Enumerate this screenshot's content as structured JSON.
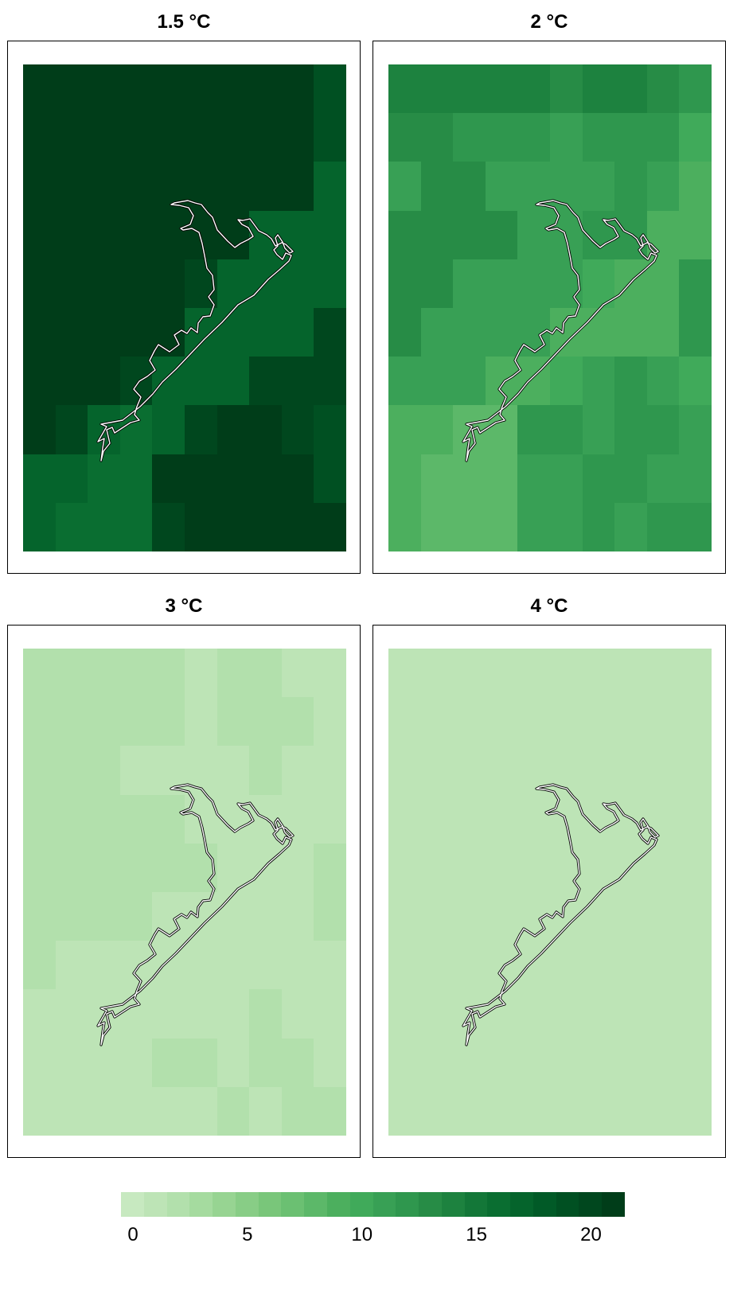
{
  "chart_data": {
    "type": "heatmap",
    "panels": [
      {
        "title": "1.5 °C",
        "grid": [
          [
            21,
            21,
            21,
            21,
            21,
            21,
            21,
            21,
            21,
            19
          ],
          [
            21,
            21,
            21,
            21,
            21,
            21,
            21,
            21,
            21,
            19
          ],
          [
            21,
            21,
            21,
            21,
            21,
            21,
            21,
            21,
            21,
            17
          ],
          [
            21,
            21,
            21,
            21,
            21,
            21,
            21,
            17,
            17,
            17
          ],
          [
            21,
            21,
            21,
            21,
            21,
            20,
            17,
            17,
            17,
            17
          ],
          [
            21,
            21,
            21,
            21,
            21,
            17,
            17,
            17,
            17,
            20
          ],
          [
            21,
            21,
            21,
            20,
            17,
            17,
            17,
            20,
            20,
            20
          ],
          [
            21,
            20,
            17,
            16,
            17,
            20,
            21,
            21,
            20,
            19
          ],
          [
            17,
            17,
            16,
            16,
            21,
            21,
            21,
            21,
            21,
            19
          ],
          [
            17,
            16,
            16,
            16,
            20,
            21,
            21,
            21,
            21,
            21
          ]
        ]
      },
      {
        "title": "2 °C",
        "grid": [
          [
            14,
            14,
            14,
            14,
            14,
            13,
            14,
            14,
            13,
            12
          ],
          [
            13,
            13,
            12,
            12,
            12,
            11,
            12,
            12,
            12,
            10
          ],
          [
            11,
            13,
            13,
            11,
            11,
            11,
            11,
            12,
            11,
            9
          ],
          [
            13,
            13,
            13,
            13,
            11,
            11,
            12,
            12,
            9,
            9
          ],
          [
            13,
            13,
            11,
            11,
            11,
            11,
            10,
            9,
            9,
            12
          ],
          [
            13,
            11,
            11,
            11,
            11,
            9,
            9,
            9,
            9,
            12
          ],
          [
            11,
            11,
            11,
            9,
            9,
            10,
            11,
            12,
            11,
            10
          ],
          [
            9,
            9,
            8,
            8,
            12,
            12,
            11,
            12,
            12,
            11
          ],
          [
            9,
            8,
            8,
            8,
            11,
            11,
            12,
            12,
            11,
            11
          ],
          [
            9,
            8,
            8,
            8,
            11,
            11,
            12,
            11,
            12,
            12
          ]
        ]
      },
      {
        "title": "3 °C",
        "grid": [
          [
            2,
            2,
            2,
            2,
            2,
            1,
            2,
            2,
            1,
            1
          ],
          [
            2,
            2,
            2,
            2,
            2,
            1,
            2,
            2,
            2,
            1
          ],
          [
            2,
            2,
            2,
            1,
            1,
            1,
            1,
            2,
            1,
            1
          ],
          [
            2,
            2,
            2,
            2,
            2,
            1,
            1,
            1,
            1,
            1
          ],
          [
            2,
            2,
            2,
            2,
            2,
            2,
            1,
            1,
            1,
            2
          ],
          [
            2,
            2,
            2,
            2,
            1,
            1,
            1,
            1,
            1,
            2
          ],
          [
            2,
            1,
            1,
            1,
            1,
            1,
            1,
            1,
            1,
            1
          ],
          [
            1,
            1,
            1,
            1,
            1,
            1,
            1,
            2,
            1,
            1
          ],
          [
            1,
            1,
            1,
            1,
            2,
            2,
            1,
            2,
            2,
            1
          ],
          [
            1,
            1,
            1,
            1,
            1,
            1,
            2,
            1,
            2,
            2
          ]
        ]
      },
      {
        "title": "4 °C",
        "grid": [
          [
            1,
            1,
            1,
            1,
            1,
            1,
            1,
            1,
            1,
            1
          ],
          [
            1,
            1,
            1,
            1,
            1,
            1,
            1,
            1,
            1,
            1
          ],
          [
            1,
            1,
            1,
            1,
            1,
            1,
            1,
            1,
            1,
            1
          ],
          [
            1,
            1,
            1,
            1,
            1,
            1,
            1,
            1,
            1,
            1
          ],
          [
            1,
            1,
            1,
            1,
            1,
            1,
            1,
            1,
            1,
            1
          ],
          [
            1,
            1,
            1,
            1,
            1,
            1,
            1,
            1,
            1,
            1
          ],
          [
            1,
            1,
            1,
            1,
            1,
            1,
            1,
            1,
            1,
            1
          ],
          [
            1,
            1,
            1,
            1,
            1,
            1,
            1,
            1,
            1,
            1
          ],
          [
            1,
            1,
            1,
            1,
            1,
            1,
            1,
            1,
            1,
            1
          ],
          [
            1,
            1,
            1,
            1,
            1,
            1,
            1,
            1,
            1,
            1
          ]
        ]
      }
    ],
    "colorbar": {
      "range": [
        0,
        22
      ],
      "ticks": [
        "0",
        "5",
        "10",
        "15",
        "20"
      ],
      "colors": [
        "#c7e9c0",
        "#bde4b6",
        "#b2e0ac",
        "#a5db9f",
        "#97d492",
        "#88cd86",
        "#79c67a",
        "#6bc072",
        "#5cb869",
        "#4caf5e",
        "#40aa5a",
        "#38a055",
        "#2f974e",
        "#278c46",
        "#1d823f",
        "#137738",
        "#0a6e31",
        "#05642c",
        "#015a27",
        "#005022",
        "#00471e",
        "#003d19"
      ]
    },
    "colors": {
      "coastline": "#ffffff",
      "coastline_outline": "#000000"
    }
  }
}
